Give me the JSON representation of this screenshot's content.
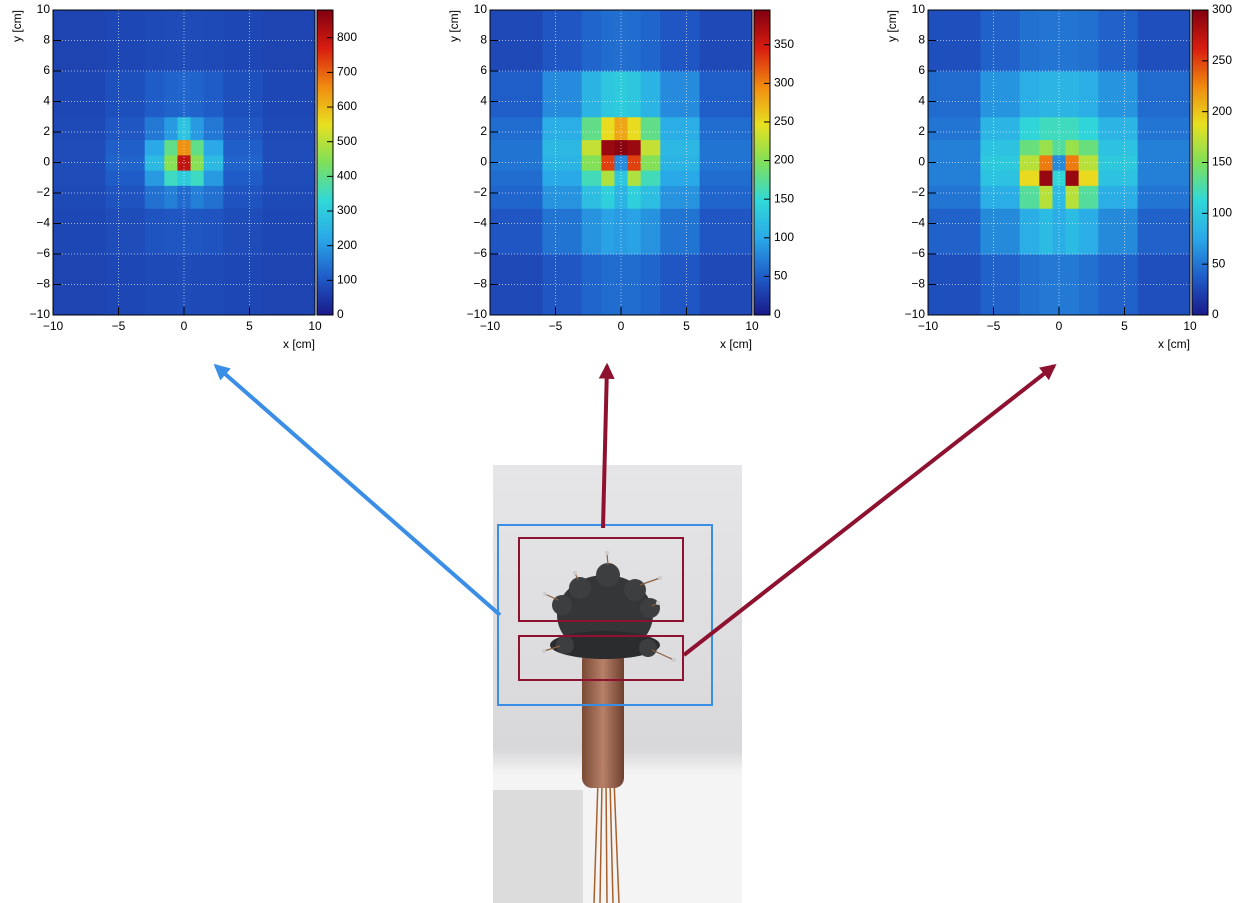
{
  "chart_data": [
    {
      "type": "heatmap",
      "xlabel": "x [cm]",
      "ylabel": "y [cm]",
      "x": [
        -8,
        -4,
        -2,
        -1,
        0,
        1,
        2,
        4,
        8
      ],
      "y": [
        -8,
        -4,
        -2,
        -1,
        0,
        1,
        2,
        4,
        8
      ],
      "z": [
        [
          70,
          75,
          80,
          80,
          85,
          80,
          80,
          75,
          70
        ],
        [
          75,
          85,
          95,
          100,
          100,
          100,
          95,
          85,
          75
        ],
        [
          80,
          95,
          140,
          160,
          130,
          160,
          140,
          95,
          80
        ],
        [
          85,
          110,
          200,
          350,
          300,
          350,
          200,
          110,
          85
        ],
        [
          85,
          120,
          260,
          450,
          800,
          450,
          260,
          120,
          85
        ],
        [
          85,
          115,
          220,
          400,
          650,
          400,
          220,
          115,
          85
        ],
        [
          80,
          100,
          150,
          200,
          280,
          200,
          150,
          100,
          80
        ],
        [
          75,
          90,
          110,
          120,
          125,
          120,
          110,
          90,
          75
        ],
        [
          70,
          75,
          80,
          82,
          85,
          82,
          80,
          75,
          70
        ]
      ],
      "xlim": [
        -10,
        10
      ],
      "ylim": [
        -10,
        10
      ],
      "xticks": [
        {
          "value": -10,
          "label": "−10"
        },
        {
          "value": -5,
          "label": "−5"
        },
        0,
        5,
        10
      ],
      "yticks": [
        {
          "value": -10,
          "label": "−10"
        },
        {
          "value": -8,
          "label": "−8"
        },
        {
          "value": -6,
          "label": "−6"
        },
        {
          "value": -4,
          "label": "−4"
        },
        {
          "value": -2,
          "label": "−2"
        },
        0,
        2,
        4,
        6,
        8,
        10
      ],
      "zlim": [
        0,
        880
      ],
      "zticks": [
        0,
        100,
        200,
        300,
        400,
        500,
        600,
        700,
        800
      ],
      "grid": true,
      "colors": [
        "#1a1a8a",
        "#1f5cc8",
        "#2aa8e8",
        "#30d8d8",
        "#7ee05a",
        "#e8e020",
        "#f08a10",
        "#d81c10",
        "#800010"
      ]
    },
    {
      "type": "heatmap",
      "xlabel": "x [cm]",
      "ylabel": "y [cm]",
      "x": [
        -8,
        -4,
        -2,
        -1,
        0,
        1,
        2,
        4,
        8
      ],
      "y": [
        -8,
        -4,
        -2,
        -1,
        0,
        1,
        2,
        4,
        8
      ],
      "z": [
        [
          35,
          45,
          55,
          60,
          60,
          60,
          55,
          45,
          35
        ],
        [
          45,
          65,
          85,
          95,
          90,
          95,
          85,
          65,
          45
        ],
        [
          55,
          85,
          120,
          140,
          110,
          140,
          120,
          85,
          55
        ],
        [
          60,
          100,
          160,
          220,
          130,
          220,
          160,
          100,
          60
        ],
        [
          65,
          110,
          200,
          330,
          80,
          330,
          200,
          110,
          65
        ],
        [
          65,
          115,
          230,
          380,
          390,
          380,
          230,
          115,
          65
        ],
        [
          60,
          105,
          180,
          250,
          280,
          250,
          180,
          105,
          60
        ],
        [
          50,
          80,
          110,
          130,
          135,
          130,
          110,
          80,
          50
        ],
        [
          35,
          45,
          55,
          60,
          62,
          60,
          55,
          45,
          35
        ]
      ],
      "xlim": [
        -10,
        10
      ],
      "ylim": [
        -10,
        10
      ],
      "xticks": [
        {
          "value": -10,
          "label": "−10"
        },
        {
          "value": -5,
          "label": "−5"
        },
        0,
        5,
        10
      ],
      "yticks": [
        {
          "value": -10,
          "label": "−10"
        },
        {
          "value": -8,
          "label": "−8"
        },
        {
          "value": -6,
          "label": "−6"
        },
        {
          "value": -4,
          "label": "−4"
        },
        {
          "value": -2,
          "label": "−2"
        },
        0,
        2,
        4,
        6,
        8,
        10
      ],
      "zlim": [
        0,
        395
      ],
      "zticks": [
        0,
        50,
        100,
        150,
        200,
        250,
        300,
        350
      ],
      "grid": true,
      "colors": [
        "#1a1a8a",
        "#1f5cc8",
        "#2aa8e8",
        "#30d8d8",
        "#7ee05a",
        "#e8e020",
        "#f08a10",
        "#d81c10",
        "#800010"
      ]
    },
    {
      "type": "heatmap",
      "xlabel": "x [cm]",
      "ylabel": "y [cm]",
      "x": [
        -8,
        -4,
        -2,
        -1,
        0,
        1,
        2,
        4,
        8
      ],
      "y": [
        -8,
        -4,
        -2,
        -1,
        0,
        1,
        2,
        4,
        8
      ],
      "z": [
        [
          30,
          40,
          48,
          52,
          52,
          52,
          48,
          40,
          30
        ],
        [
          40,
          60,
          80,
          90,
          80,
          90,
          80,
          60,
          40
        ],
        [
          50,
          80,
          130,
          170,
          90,
          170,
          130,
          80,
          50
        ],
        [
          55,
          95,
          190,
          290,
          110,
          290,
          190,
          95,
          55
        ],
        [
          55,
          100,
          170,
          230,
          60,
          230,
          170,
          100,
          55
        ],
        [
          55,
          95,
          140,
          160,
          130,
          160,
          140,
          95,
          55
        ],
        [
          50,
          85,
          110,
          120,
          120,
          120,
          110,
          85,
          50
        ],
        [
          45,
          65,
          80,
          85,
          85,
          85,
          80,
          65,
          45
        ],
        [
          30,
          40,
          48,
          50,
          50,
          50,
          48,
          40,
          30
        ]
      ],
      "xlim": [
        -10,
        10
      ],
      "ylim": [
        -10,
        10
      ],
      "xticks": [
        {
          "value": -10,
          "label": "−10"
        },
        {
          "value": -5,
          "label": "−5"
        },
        0,
        5,
        10
      ],
      "yticks": [
        {
          "value": -10,
          "label": "−10"
        },
        {
          "value": -8,
          "label": "−8"
        },
        {
          "value": -6,
          "label": "−6"
        },
        {
          "value": -4,
          "label": "−4"
        },
        {
          "value": -2,
          "label": "−2"
        },
        0,
        2,
        4,
        6,
        8,
        10
      ],
      "zlim": [
        0,
        300
      ],
      "zticks": [
        0,
        50,
        100,
        150,
        200,
        250,
        300
      ],
      "grid": true,
      "colors": [
        "#1a1a8a",
        "#1f5cc8",
        "#2aa8e8",
        "#30d8d8",
        "#7ee05a",
        "#e8e020",
        "#f08a10",
        "#d81c10",
        "#800010"
      ]
    }
  ]
}
